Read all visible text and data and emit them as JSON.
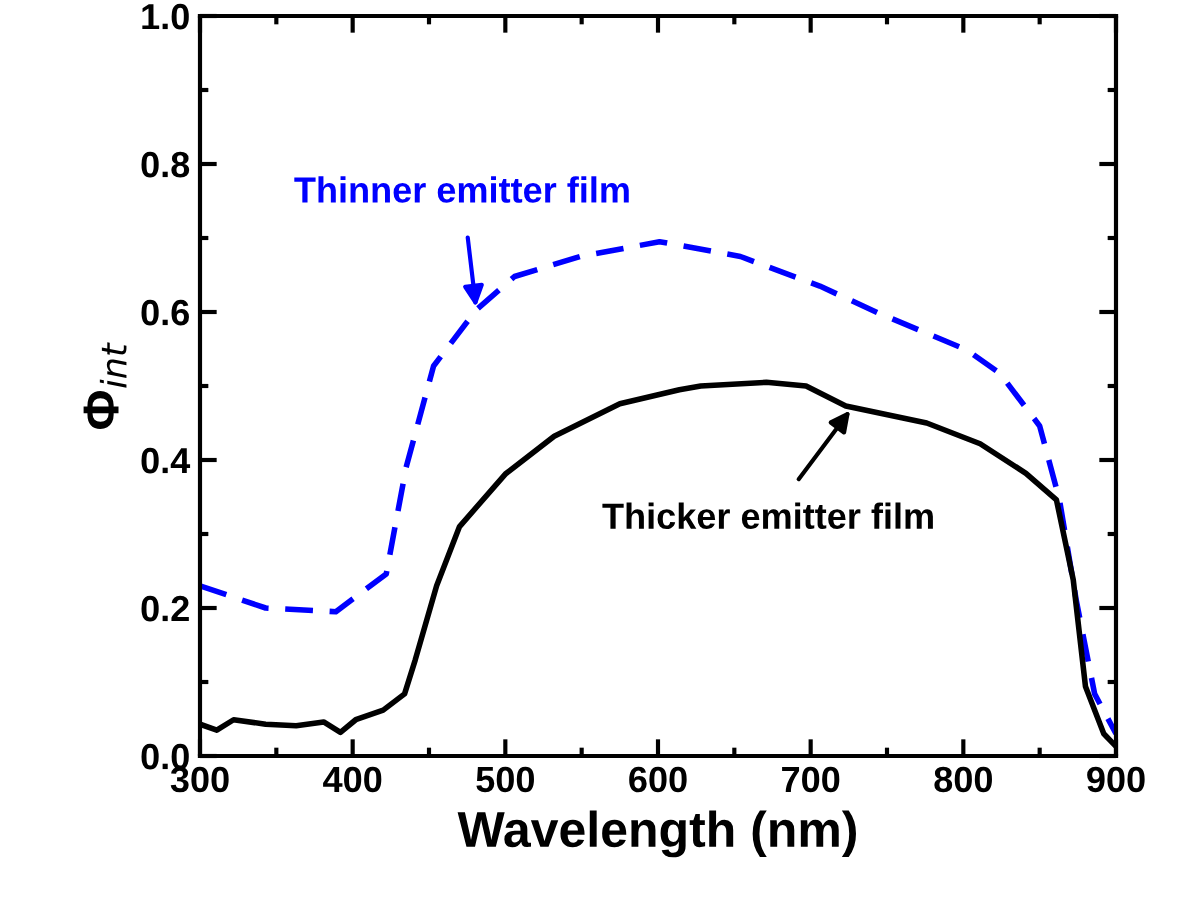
{
  "chart_data": {
    "type": "line",
    "xlabel": "Wavelength (nm)",
    "ylabel": "Φ$_{int}$",
    "xlim": [
      300,
      900
    ],
    "ylim": [
      0,
      1
    ],
    "xticks": [
      300,
      400,
      500,
      600,
      700,
      800,
      900
    ],
    "yticks": [
      {
        "value": 0,
        "label": "0.0"
      },
      {
        "value": 0.2,
        "label": "0.2"
      },
      {
        "value": 0.4,
        "label": "0.4"
      },
      {
        "value": 0.6,
        "label": "0.6"
      },
      {
        "value": 0.8,
        "label": "0.8"
      },
      {
        "value": 1,
        "label": "1.0"
      }
    ],
    "grid": false,
    "legend": false,
    "series": [
      {
        "color": "#0000ff",
        "line_style": "dashed",
        "x": [
          300,
          343,
          389,
          422,
          435,
          453,
          481,
          506,
          549,
          601,
          654,
          706,
          745,
          802,
          824,
          850,
          863,
          874,
          886,
          900
        ],
        "values": [
          0.23,
          0.2,
          0.195,
          0.246,
          0.39,
          0.527,
          0.603,
          0.648,
          0.675,
          0.695,
          0.675,
          0.635,
          0.598,
          0.549,
          0.517,
          0.446,
          0.346,
          0.21,
          0.084,
          0.03
        ]
      },
      {
        "color": "#000000",
        "line_style": "solid",
        "x": [
          300,
          311,
          322,
          343,
          363,
          381,
          392,
          402,
          420,
          434,
          441,
          455,
          470,
          500,
          532,
          575,
          614,
          628,
          671,
          697,
          723,
          776,
          811,
          841,
          861,
          872,
          880,
          892,
          900
        ],
        "values": [
          0.043,
          0.035,
          0.049,
          0.043,
          0.041,
          0.046,
          0.032,
          0.049,
          0.062,
          0.084,
          0.13,
          0.23,
          0.31,
          0.381,
          0.432,
          0.476,
          0.495,
          0.5,
          0.505,
          0.5,
          0.473,
          0.45,
          0.422,
          0.382,
          0.346,
          0.238,
          0.094,
          0.03,
          0.013
        ]
      }
    ],
    "annotations": [
      {
        "text": "Thinner emitter film",
        "x": 481,
        "y": 0.603
      },
      {
        "text": "Thicker emitter film",
        "x": 727,
        "y": 0.47
      }
    ]
  }
}
